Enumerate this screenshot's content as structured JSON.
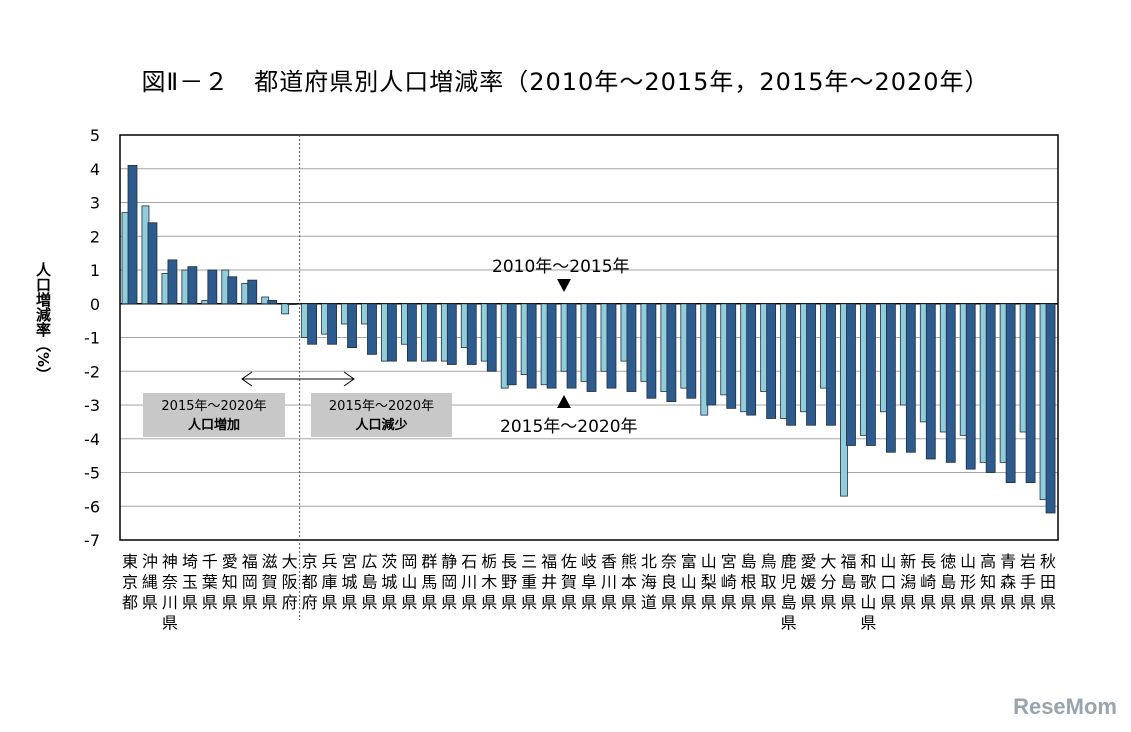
{
  "chart_data": {
    "type": "bar",
    "title": "図Ⅱ－２　都道府県別人口増減率（2010年～2015年，2015年～2020年）",
    "ylabel": "人口増減率（%）",
    "xlabel": "",
    "ylim": [
      -7,
      5
    ],
    "yticks": [
      5,
      4,
      3,
      2,
      1,
      0,
      -1,
      -2,
      -3,
      -4,
      -5,
      -6,
      -7
    ],
    "grid": true,
    "categories": [
      "東京都",
      "沖縄県",
      "神奈川県",
      "埼玉県",
      "千葉県",
      "愛知県",
      "福岡県",
      "滋賀県",
      "大阪府",
      "京都府",
      "兵庫県",
      "宮城県",
      "広島県",
      "茨城県",
      "岡山県",
      "群馬県",
      "静岡県",
      "石川県",
      "栃木県",
      "長野県",
      "三重県",
      "福井県",
      "佐賀県",
      "岐阜県",
      "香川県",
      "熊本県",
      "北海道",
      "奈良県",
      "富山県",
      "山梨県",
      "宮崎県",
      "島根県",
      "鳥取県",
      "鹿児島県",
      "愛媛県",
      "大分県",
      "福島県",
      "和歌山県",
      "山口県",
      "新潟県",
      "長崎県",
      "徳島県",
      "山形県",
      "高知県",
      "青森県",
      "岩手県",
      "秋田県"
    ],
    "series": [
      {
        "name": "2010年～2015年",
        "color": "#92cddc",
        "values": [
          2.7,
          2.9,
          0.9,
          1.0,
          0.1,
          1.0,
          0.6,
          0.2,
          -0.3,
          -1.0,
          -0.9,
          -0.6,
          -0.6,
          -1.7,
          -1.2,
          -1.7,
          -1.7,
          -1.3,
          -1.7,
          -2.5,
          -2.1,
          -2.4,
          -2.0,
          -2.3,
          -2.0,
          -1.7,
          -2.3,
          -2.6,
          -2.5,
          -3.3,
          -2.7,
          -3.2,
          -2.6,
          -3.4,
          -3.2,
          -2.5,
          -5.7,
          -3.9,
          -3.2,
          -3.0,
          -3.5,
          -3.8,
          -3.9,
          -4.7,
          -4.7,
          -3.8,
          -5.8
        ]
      },
      {
        "name": "2015年～2020年",
        "color": "#2e5b8e",
        "values": [
          4.1,
          2.4,
          1.3,
          1.1,
          1.0,
          0.8,
          0.7,
          0.1,
          0.0,
          -1.2,
          -1.2,
          -1.3,
          -1.5,
          -1.7,
          -1.7,
          -1.7,
          -1.8,
          -1.8,
          -2.0,
          -2.4,
          -2.5,
          -2.5,
          -2.5,
          -2.6,
          -2.5,
          -2.6,
          -2.8,
          -2.9,
          -2.8,
          -3.0,
          -3.1,
          -3.3,
          -3.4,
          -3.6,
          -3.6,
          -3.6,
          -4.2,
          -4.2,
          -4.4,
          -4.4,
          -4.6,
          -4.7,
          -4.9,
          -5.0,
          -5.3,
          -5.3,
          -6.2
        ]
      }
    ],
    "annotations": {
      "increase_box": [
        "2015年～2020年",
        "人口増加"
      ],
      "decrease_box": [
        "2015年～2020年",
        "人口減少"
      ],
      "marker_top": "2010年～2015年",
      "marker_bottom": "2015年～2020年"
    }
  },
  "watermark": "ReseMom"
}
